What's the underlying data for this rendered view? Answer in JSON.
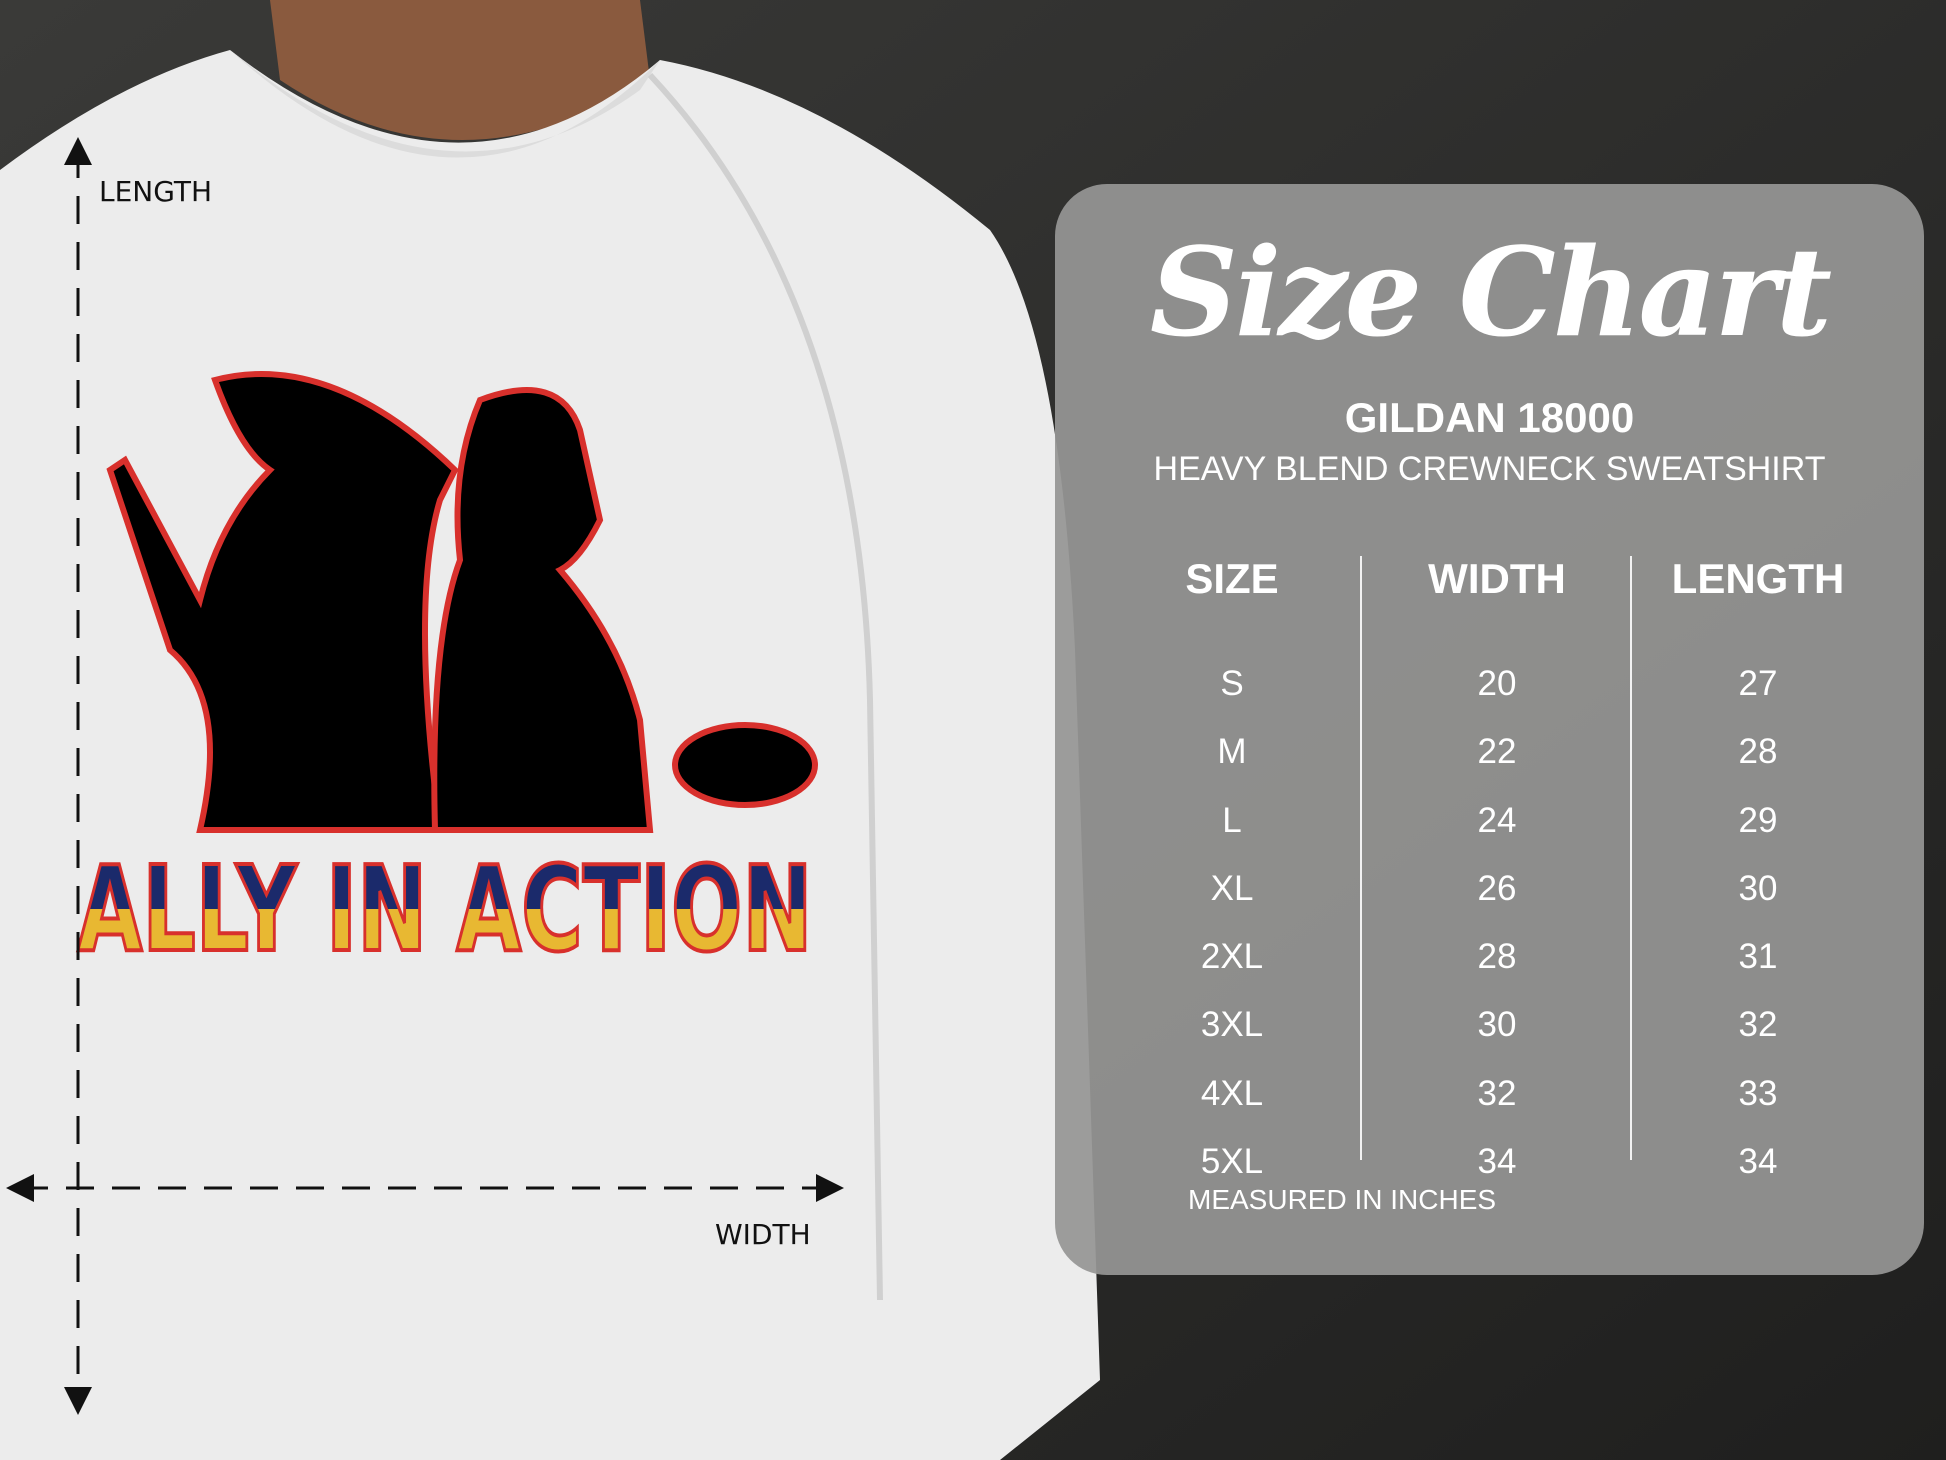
{
  "graphic": {
    "print_text": "ALLY IN ACTION",
    "colors": {
      "navy": "#1b2a6b",
      "yellow": "#e8b832",
      "red": "#d8302c"
    }
  },
  "measure_labels": {
    "length": "LENGTH",
    "width": "WIDTH"
  },
  "size_chart": {
    "title": "Size Chart",
    "brand": "GILDAN 18000",
    "product": "HEAVY BLEND CREWNECK SWEATSHIRT",
    "headers": [
      "SIZE",
      "WIDTH",
      "LENGTH"
    ],
    "rows": [
      [
        "S",
        "20",
        "27"
      ],
      [
        "M",
        "22",
        "28"
      ],
      [
        "L",
        "24",
        "29"
      ],
      [
        "XL",
        "26",
        "30"
      ],
      [
        "2XL",
        "28",
        "31"
      ],
      [
        "3XL",
        "30",
        "32"
      ],
      [
        "4XL",
        "32",
        "33"
      ],
      [
        "5XL",
        "34",
        "34"
      ]
    ],
    "note": "MEASURED IN INCHES"
  }
}
